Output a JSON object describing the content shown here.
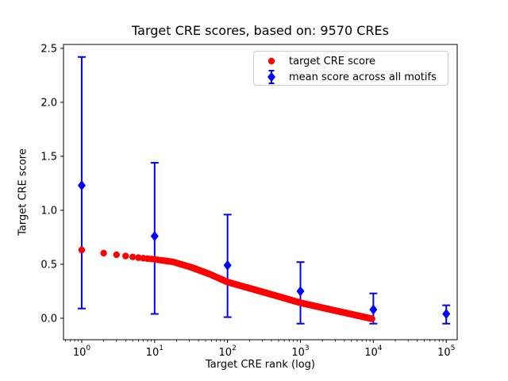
{
  "chart_data": {
    "type": "scatter",
    "title": "Target CRE scores, based on: 9570 CREs",
    "xlabel": "Target CRE rank (log)",
    "ylabel": "Target CRE score",
    "x_scale": "log10",
    "xlim_log10": [
      -0.25,
      5.15
    ],
    "ylim": [
      -0.199,
      2.536
    ],
    "x_tick_exponents": [
      0,
      1,
      2,
      3,
      4,
      5
    ],
    "y_ticks": [
      "0.0",
      "0.5",
      "1.0",
      "1.5",
      "2.0",
      "2.5"
    ],
    "grid": false,
    "legend_position": "upper right",
    "series": [
      {
        "name": "target CRE score",
        "marker": "circle",
        "color": "#ff0000",
        "n_points": 9570,
        "trend_log10": [
          [
            0,
            0.632
          ],
          [
            0.301,
            0.603
          ],
          [
            0.477,
            0.588
          ],
          [
            0.602,
            0.576
          ],
          [
            0.699,
            0.568
          ],
          [
            0.778,
            0.561
          ],
          [
            0.845,
            0.556
          ],
          [
            0.903,
            0.552
          ],
          [
            0.954,
            0.549
          ],
          [
            1.0,
            0.545
          ],
          [
            1.25,
            0.522
          ],
          [
            1.5,
            0.472
          ],
          [
            1.75,
            0.41
          ],
          [
            2.0,
            0.335
          ],
          [
            2.5,
            0.24
          ],
          [
            3.0,
            0.143
          ],
          [
            3.5,
            0.067
          ],
          [
            3.981,
            -0.005
          ]
        ]
      },
      {
        "name": "mean score across all motifs",
        "marker": "diamond",
        "color": "#0000ff",
        "points": [
          {
            "x": 1,
            "y": 1.23,
            "lo": 0.09,
            "hi": 2.42
          },
          {
            "x": 10,
            "y": 0.76,
            "lo": 0.04,
            "hi": 1.44
          },
          {
            "x": 100,
            "y": 0.49,
            "lo": 0.01,
            "hi": 0.96
          },
          {
            "x": 1000,
            "y": 0.25,
            "lo": -0.05,
            "hi": 0.52
          },
          {
            "x": 10000,
            "y": 0.08,
            "lo": -0.05,
            "hi": 0.23
          },
          {
            "x": 100000,
            "y": 0.04,
            "lo": -0.05,
            "hi": 0.12
          }
        ]
      }
    ]
  }
}
